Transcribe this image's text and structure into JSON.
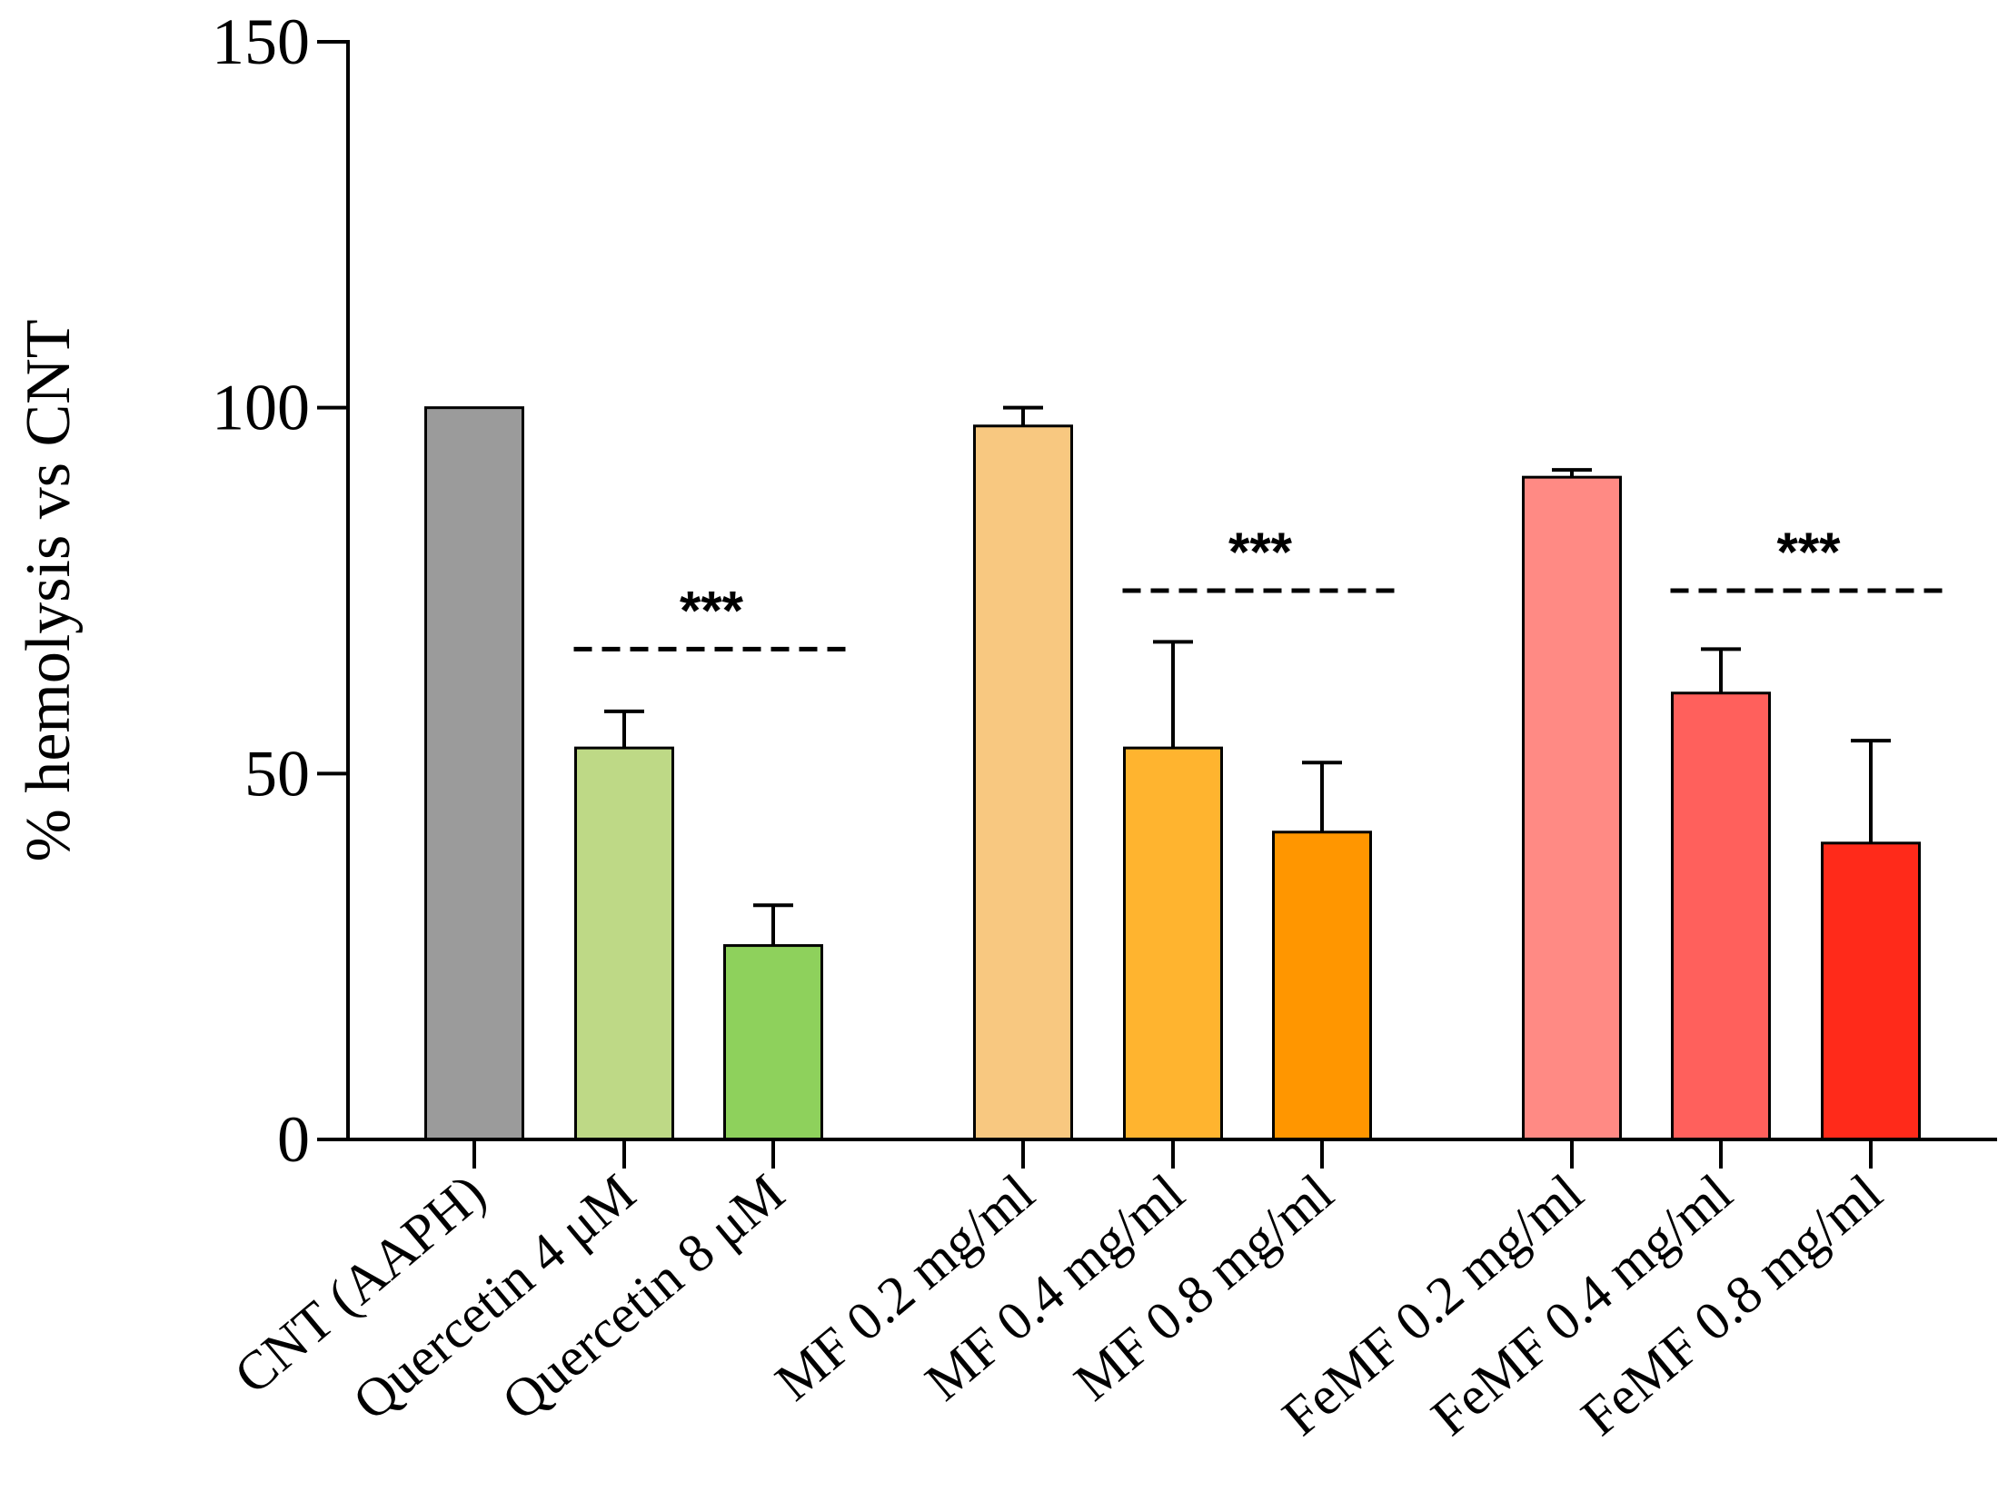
{
  "chart_data": {
    "type": "bar",
    "title": "",
    "xlabel": "",
    "ylabel": "% hemolysis vs CNT",
    "ylim": [
      0,
      150
    ],
    "yticks": [
      0,
      50,
      100,
      150
    ],
    "grid": false,
    "legend": "none",
    "categories": [
      "CNT (AAPH)",
      "Quercetin 4 μM",
      "Quercetin 8 μM",
      "MF 0.2 mg/ml",
      "MF 0.4 mg/ml",
      "MF 0.8 mg/ml",
      "FeMF 0.2 mg/ml",
      "FeMF 0.4 mg/ml",
      "FeMF 0.8 mg/ml"
    ],
    "values": [
      100,
      53.5,
      26.5,
      97.5,
      53.5,
      42,
      90.5,
      61,
      40.5
    ],
    "errors": [
      0,
      5,
      5.5,
      2.5,
      14.5,
      9.5,
      1,
      6,
      14
    ],
    "colors": [
      "#9b9b9b",
      "#bed986",
      "#8ed15c",
      "#f8c880",
      "#ffb42f",
      "#ff9600",
      "#ff8a84",
      "#ff605c",
      "#ff2a1a"
    ],
    "groups": [
      [
        0,
        1,
        2
      ],
      [
        3,
        4,
        5
      ],
      [
        6,
        7,
        8
      ]
    ],
    "annotations": [
      {
        "label": "***",
        "from": 1,
        "to": 2,
        "y": 67
      },
      {
        "label": "***",
        "from": 4,
        "to": 5,
        "y": 75
      },
      {
        "label": "***",
        "from": 7,
        "to": 8,
        "y": 75
      }
    ]
  }
}
